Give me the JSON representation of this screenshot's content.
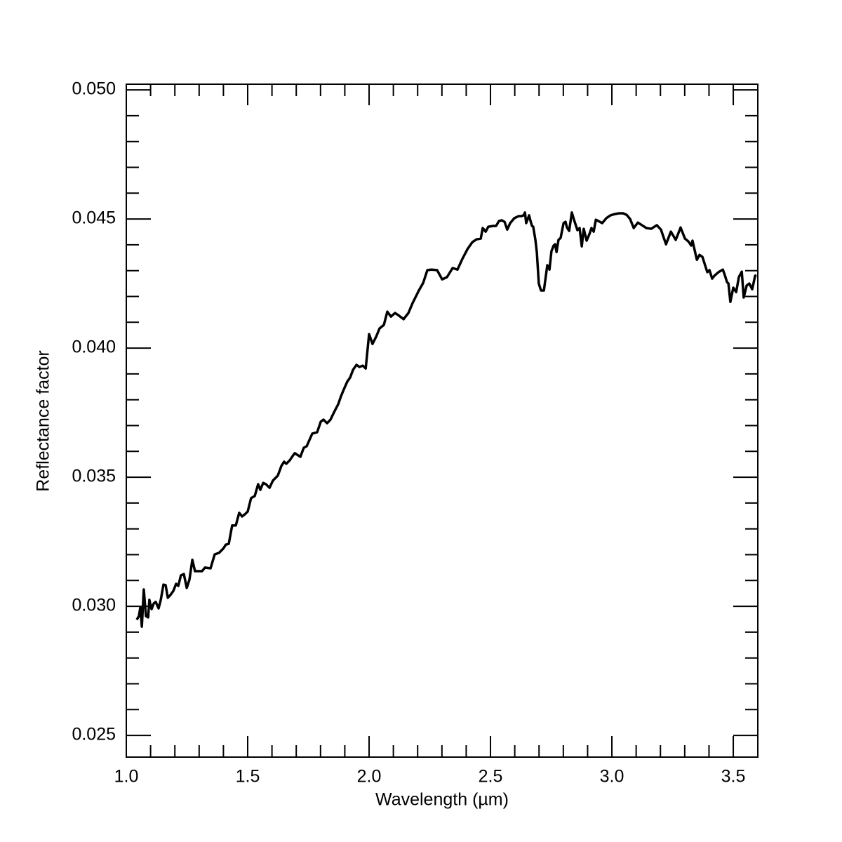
{
  "chart_data": {
    "type": "line",
    "xlabel": "Wavelength (µm)",
    "ylabel": "Reflectance factor",
    "color": "#000000",
    "xlim": [
      1.0,
      3.601
    ],
    "ylim": [
      0.02416,
      0.05022
    ],
    "xticks": [
      {
        "value": 1.0,
        "label": "1.0"
      },
      1.5,
      {
        "value": 2.0,
        "label": "2.0"
      },
      2.5,
      {
        "value": 3.0,
        "label": "3.0"
      },
      3.5
    ],
    "xminorticks": [
      1.1,
      1.2,
      1.3,
      1.4,
      1.6,
      1.7,
      1.8,
      1.9,
      2.1,
      2.2,
      2.3,
      2.4,
      2.6,
      2.7,
      2.8,
      2.9,
      3.1,
      3.2,
      3.3,
      3.4
    ],
    "yticks": [
      {
        "value": 0.025,
        "label": "0.025"
      },
      {
        "value": 0.03,
        "label": "0.030"
      },
      {
        "value": 0.035,
        "label": "0.035"
      },
      {
        "value": 0.04,
        "label": "0.040"
      },
      {
        "value": 0.045,
        "label": "0.045"
      },
      {
        "value": 0.05,
        "label": "0.050"
      }
    ],
    "yminorticks": [
      0.026,
      0.027,
      0.028,
      0.029,
      0.031,
      0.032,
      0.033,
      0.034,
      0.036,
      0.037,
      0.038,
      0.039,
      0.041,
      0.042,
      0.043,
      0.044,
      0.046,
      0.047,
      0.048,
      0.049
    ],
    "x": [
      1.043,
      1.052,
      1.058,
      1.064,
      1.072,
      1.081,
      1.09,
      1.095,
      1.104,
      1.113,
      1.121,
      1.133,
      1.142,
      1.153,
      1.162,
      1.171,
      1.182,
      1.194,
      1.205,
      1.214,
      1.225,
      1.237,
      1.249,
      1.26,
      1.272,
      1.283,
      1.301,
      1.312,
      1.324,
      1.347,
      1.364,
      1.382,
      1.399,
      1.41,
      1.422,
      1.436,
      1.451,
      1.465,
      1.477,
      1.488,
      1.5,
      1.514,
      1.529,
      1.543,
      1.552,
      1.564,
      1.575,
      1.59,
      1.604,
      1.624,
      1.639,
      1.65,
      1.659,
      1.673,
      1.685,
      1.694,
      1.717,
      1.731,
      1.743,
      1.766,
      1.786,
      1.801,
      1.812,
      1.827,
      1.841,
      1.858,
      1.873,
      1.884,
      1.896,
      1.91,
      1.922,
      1.934,
      1.948,
      1.96,
      1.974,
      1.986,
      2.0,
      2.014,
      2.029,
      2.043,
      2.061,
      2.075,
      2.09,
      2.107,
      2.124,
      2.142,
      2.162,
      2.179,
      2.205,
      2.223,
      2.24,
      2.257,
      2.28,
      2.301,
      2.321,
      2.344,
      2.364,
      2.384,
      2.405,
      2.425,
      2.442,
      2.46,
      2.468,
      2.48,
      2.491,
      2.512,
      2.523,
      2.535,
      2.546,
      2.558,
      2.569,
      2.581,
      2.598,
      2.616,
      2.627,
      2.636,
      2.642,
      2.647,
      2.659,
      2.665,
      2.671,
      2.676,
      2.685,
      2.691,
      2.699,
      2.708,
      2.72,
      2.734,
      2.743,
      2.751,
      2.76,
      2.766,
      2.772,
      2.78,
      2.789,
      2.801,
      2.809,
      2.815,
      2.824,
      2.835,
      2.844,
      2.858,
      2.867,
      2.876,
      2.884,
      2.896,
      2.908,
      2.916,
      2.925,
      2.934,
      2.945,
      2.96,
      2.977,
      2.994,
      3.012,
      3.029,
      3.046,
      3.061,
      3.075,
      3.09,
      3.107,
      3.124,
      3.142,
      3.162,
      3.185,
      3.202,
      3.223,
      3.243,
      3.263,
      3.283,
      3.301,
      3.315,
      3.327,
      3.332,
      3.35,
      3.361,
      3.373,
      3.393,
      3.402,
      3.413,
      3.422,
      3.439,
      3.457,
      3.465,
      3.474,
      3.48,
      3.488,
      3.5,
      3.512,
      3.523,
      3.535,
      3.543,
      3.555,
      3.566,
      3.578,
      3.59,
      3.595
    ],
    "values": [
      0.02948,
      0.02962,
      0.02997,
      0.02921,
      0.03065,
      0.02962,
      0.02957,
      0.03025,
      0.02989,
      0.03011,
      0.03017,
      0.02992,
      0.03025,
      0.03084,
      0.03082,
      0.03033,
      0.03044,
      0.0306,
      0.03087,
      0.03079,
      0.0312,
      0.03125,
      0.03071,
      0.03103,
      0.0318,
      0.03136,
      0.03136,
      0.03136,
      0.0315,
      0.03147,
      0.03201,
      0.03207,
      0.03223,
      0.03239,
      0.03242,
      0.03313,
      0.03313,
      0.03362,
      0.03348,
      0.03356,
      0.03367,
      0.03419,
      0.03427,
      0.03473,
      0.03451,
      0.03478,
      0.03473,
      0.03459,
      0.03487,
      0.03506,
      0.03544,
      0.0356,
      0.03552,
      0.03565,
      0.03582,
      0.03593,
      0.03579,
      0.03614,
      0.0362,
      0.03669,
      0.03674,
      0.03715,
      0.03723,
      0.03709,
      0.03723,
      0.03756,
      0.03783,
      0.03813,
      0.0384,
      0.0387,
      0.03886,
      0.03916,
      0.03935,
      0.03927,
      0.03932,
      0.03921,
      0.04054,
      0.04016,
      0.04044,
      0.04076,
      0.0409,
      0.04141,
      0.04122,
      0.04136,
      0.04125,
      0.04112,
      0.04136,
      0.04174,
      0.04223,
      0.04253,
      0.04302,
      0.04304,
      0.04302,
      0.04266,
      0.04275,
      0.0431,
      0.04304,
      0.04345,
      0.04383,
      0.0441,
      0.04421,
      0.04424,
      0.04465,
      0.04451,
      0.0447,
      0.04473,
      0.04473,
      0.04492,
      0.04495,
      0.04489,
      0.04459,
      0.04484,
      0.04503,
      0.04511,
      0.04511,
      0.04514,
      0.04525,
      0.04484,
      0.04514,
      0.04492,
      0.04473,
      0.0447,
      0.04419,
      0.0437,
      0.0425,
      0.04223,
      0.04223,
      0.04321,
      0.04304,
      0.04375,
      0.04397,
      0.04402,
      0.04372,
      0.04419,
      0.04427,
      0.04484,
      0.04489,
      0.04467,
      0.04454,
      0.04525,
      0.04497,
      0.04457,
      0.04465,
      0.04394,
      0.04462,
      0.04416,
      0.04443,
      0.04465,
      0.04451,
      0.04497,
      0.04492,
      0.04484,
      0.04503,
      0.04514,
      0.04519,
      0.04522,
      0.04522,
      0.04516,
      0.045,
      0.04465,
      0.04486,
      0.04476,
      0.04465,
      0.04462,
      0.04476,
      0.04459,
      0.04402,
      0.04451,
      0.04419,
      0.04467,
      0.04424,
      0.04413,
      0.04397,
      0.04416,
      0.04342,
      0.04361,
      0.04353,
      0.04294,
      0.04302,
      0.04269,
      0.0428,
      0.04294,
      0.04304,
      0.04283,
      0.04256,
      0.0425,
      0.04179,
      0.04234,
      0.04217,
      0.04275,
      0.04296,
      0.04196,
      0.04242,
      0.0425,
      0.04228,
      0.0428,
      0.04283
    ]
  }
}
